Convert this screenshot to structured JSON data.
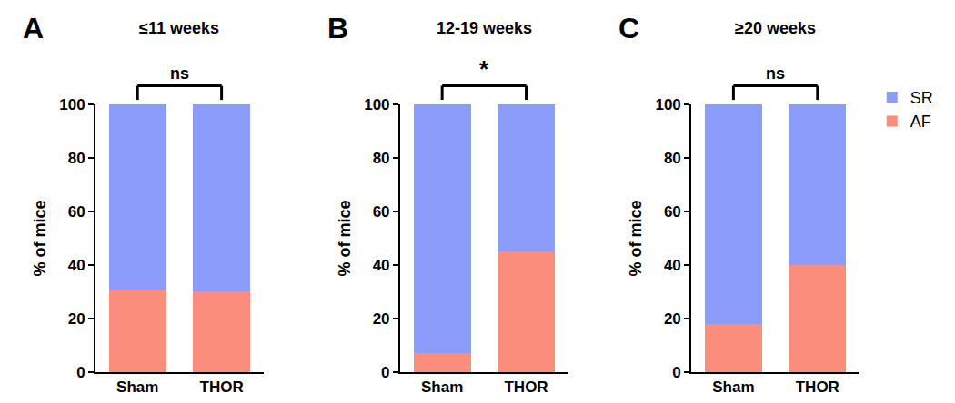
{
  "chart_data": [
    {
      "type": "bar",
      "panel": "A",
      "title": "≤11 weeks",
      "significance": "ns",
      "stacked": true,
      "categories": [
        "Sham",
        "THOR"
      ],
      "series": [
        {
          "name": "AF",
          "color": "#fb8d7d",
          "values": [
            31,
            30
          ]
        },
        {
          "name": "SR",
          "color": "#8b9cfa",
          "values": [
            69,
            70
          ]
        }
      ],
      "ylabel": "% of mice",
      "ylim": [
        0,
        100
      ],
      "yticks": [
        0,
        20,
        40,
        60,
        80,
        100
      ],
      "grid": false
    },
    {
      "type": "bar",
      "panel": "B",
      "title": "12-19 weeks",
      "significance": "*",
      "stacked": true,
      "categories": [
        "Sham",
        "THOR"
      ],
      "series": [
        {
          "name": "AF",
          "color": "#fb8d7d",
          "values": [
            7,
            45
          ]
        },
        {
          "name": "SR",
          "color": "#8b9cfa",
          "values": [
            93,
            55
          ]
        }
      ],
      "ylabel": "% of mice",
      "ylim": [
        0,
        100
      ],
      "yticks": [
        0,
        20,
        40,
        60,
        80,
        100
      ],
      "grid": false
    },
    {
      "type": "bar",
      "panel": "C",
      "title": "≥20 weeks",
      "significance": "ns",
      "stacked": true,
      "categories": [
        "Sham",
        "THOR"
      ],
      "series": [
        {
          "name": "AF",
          "color": "#fb8d7d",
          "values": [
            18,
            40
          ]
        },
        {
          "name": "SR",
          "color": "#8b9cfa",
          "values": [
            82,
            60
          ]
        }
      ],
      "ylabel": "% of mice",
      "ylim": [
        0,
        100
      ],
      "yticks": [
        0,
        20,
        40,
        60,
        80,
        100
      ],
      "grid": false,
      "legend": "right"
    }
  ]
}
